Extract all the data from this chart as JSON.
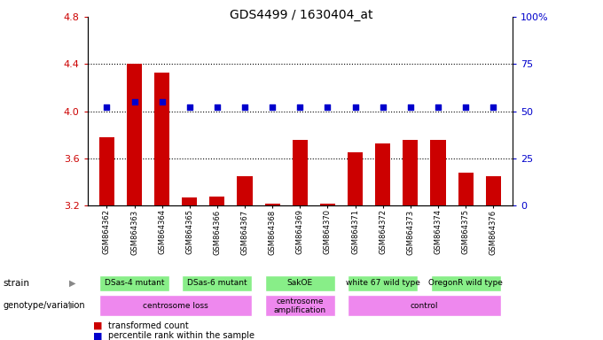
{
  "title": "GDS4499 / 1630404_at",
  "samples": [
    "GSM864362",
    "GSM864363",
    "GSM864364",
    "GSM864365",
    "GSM864366",
    "GSM864367",
    "GSM864368",
    "GSM864369",
    "GSM864370",
    "GSM864371",
    "GSM864372",
    "GSM864373",
    "GSM864374",
    "GSM864375",
    "GSM864376"
  ],
  "transformed_count": [
    3.78,
    4.4,
    4.33,
    3.27,
    3.28,
    3.45,
    3.22,
    3.76,
    3.22,
    3.65,
    3.73,
    3.76,
    3.76,
    3.48,
    3.45
  ],
  "percentile_rank": [
    52,
    55,
    55,
    52,
    52,
    52,
    52,
    52,
    52,
    52,
    52,
    52,
    52,
    52,
    52
  ],
  "ylim_left": [
    3.2,
    4.8
  ],
  "ylim_right": [
    0,
    100
  ],
  "yticks_left": [
    3.2,
    3.6,
    4.0,
    4.4,
    4.8
  ],
  "yticks_right": [
    0,
    25,
    50,
    75,
    100
  ],
  "ytick_labels_right": [
    "0",
    "25",
    "50",
    "75",
    "100%"
  ],
  "grid_lines": [
    3.6,
    4.0,
    4.4
  ],
  "bar_color": "#cc0000",
  "dot_color": "#0000cc",
  "strain_groups": [
    {
      "label": "DSas-4 mutant",
      "start": 0,
      "end": 3,
      "color": "#88ee88"
    },
    {
      "label": "DSas-6 mutant",
      "start": 3,
      "end": 6,
      "color": "#88ee88"
    },
    {
      "label": "SakOE",
      "start": 6,
      "end": 9,
      "color": "#88ee88"
    },
    {
      "label": "white 67 wild type",
      "start": 9,
      "end": 12,
      "color": "#88ee88"
    },
    {
      "label": "OregonR wild type",
      "start": 12,
      "end": 15,
      "color": "#88ee88"
    }
  ],
  "genotype_groups": [
    {
      "label": "centrosome loss",
      "start": 0,
      "end": 6,
      "color": "#ee88ee"
    },
    {
      "label": "centrosome\namplification",
      "start": 6,
      "end": 9,
      "color": "#ee88ee"
    },
    {
      "label": "control",
      "start": 9,
      "end": 15,
      "color": "#ee88ee"
    }
  ],
  "tick_label_color_left": "#cc0000",
  "tick_label_color_right": "#0000cc",
  "legend_items": [
    {
      "label": "transformed count",
      "color": "#cc0000"
    },
    {
      "label": "percentile rank within the sample",
      "color": "#0000cc"
    }
  ],
  "background_color": "#ffffff",
  "strain_row_bg": "#cccccc",
  "arrow_color": "#888888"
}
